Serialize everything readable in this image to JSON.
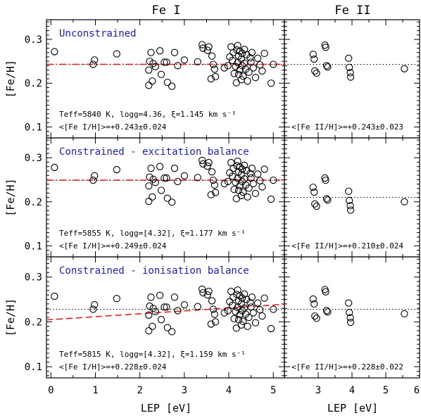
{
  "chart_data": {
    "type": "scatter",
    "column_titles": [
      "Fe I",
      "Fe II"
    ],
    "xlabel": "LEP [eV]",
    "ylabel": "[Fe/H]",
    "fe1_xlim": [
      -0.1,
      5.25
    ],
    "fe2_xlim": [
      2.0,
      6.0
    ],
    "ylim": [
      0.075,
      0.345
    ],
    "fe1_xticks": [
      "0",
      "1",
      "2",
      "3",
      "4",
      "5"
    ],
    "fe2_xticks": [
      "3",
      "4",
      "5",
      "6"
    ],
    "yticks": [
      "0.1",
      "0.2",
      "0.3"
    ],
    "fe1_ref": {
      "x": [
        0.08,
        0.95,
        0.98,
        1.48,
        2.2,
        2.2,
        2.22,
        2.25,
        2.28,
        2.3,
        2.35,
        2.45,
        2.48,
        2.55,
        2.6,
        2.62,
        2.72,
        2.78,
        2.85,
        3.0,
        3.3,
        3.4,
        3.42,
        3.52,
        3.55,
        3.6,
        3.62,
        3.65,
        3.68,
        3.7,
        3.9,
        3.98,
        4.02,
        4.05,
        4.08,
        4.1,
        4.12,
        4.15,
        4.17,
        4.18,
        4.2,
        4.2,
        4.22,
        4.22,
        4.25,
        4.25,
        4.28,
        4.28,
        4.3,
        4.3,
        4.32,
        4.35,
        4.35,
        4.38,
        4.4,
        4.42,
        4.45,
        4.48,
        4.5,
        4.52,
        4.55,
        4.6,
        4.65,
        4.7,
        4.75,
        4.8,
        4.95,
        5.0
      ],
      "y": [
        0.272,
        0.243,
        0.253,
        0.267,
        0.195,
        0.23,
        0.25,
        0.27,
        0.205,
        0.245,
        0.238,
        0.274,
        0.22,
        0.248,
        0.248,
        0.202,
        0.193,
        0.27,
        0.24,
        0.253,
        0.249,
        0.288,
        0.28,
        0.275,
        0.283,
        0.21,
        0.262,
        0.243,
        0.232,
        0.215,
        0.235,
        0.24,
        0.26,
        0.283,
        0.252,
        0.27,
        0.222,
        0.238,
        0.201,
        0.276,
        0.286,
        0.247,
        0.22,
        0.262,
        0.231,
        0.273,
        0.208,
        0.255,
        0.24,
        0.268,
        0.216,
        0.246,
        0.277,
        0.232,
        0.265,
        0.205,
        0.225,
        0.258,
        0.248,
        0.27,
        0.235,
        0.213,
        0.257,
        0.242,
        0.228,
        0.268,
        0.2,
        0.243
      ]
    },
    "fe2_ref": {
      "x": [
        2.85,
        2.88,
        2.9,
        2.95,
        3.2,
        3.22,
        3.25,
        3.28,
        3.9,
        3.92,
        3.95,
        3.96,
        5.55
      ],
      "y": [
        0.266,
        0.255,
        0.228,
        0.223,
        0.287,
        0.282,
        0.24,
        0.237,
        0.257,
        0.236,
        0.224,
        0.214,
        0.233
      ]
    },
    "panels": [
      {
        "label": "Unconstrained",
        "params": "Teff=5840 K, logg=4.36, ξ=1.145 km s⁻¹",
        "fe1_text": "<[Fe I/H]>=+0.243±0.024",
        "fe2_text": "<[Fe II/H]>=+0.243±0.023",
        "fe1_mean": 0.243,
        "fe2_mean": 0.243,
        "fe1_shift": 0.0,
        "fe2_shift": 0.0,
        "fit": [
          0.243,
          0.0
        ]
      },
      {
        "label": "Constrained - excitation balance",
        "params": "Teff=5855 K, logg=[4.32], ξ=1.177 km s⁻¹",
        "fe1_text": "<[Fe I/H]>=+0.249±0.024",
        "fe2_text": "<[Fe II/H]>=+0.210±0.024",
        "fe1_mean": 0.249,
        "fe2_mean": 0.21,
        "fe1_shift": 0.006,
        "fe2_shift": -0.033,
        "fit": [
          0.249,
          0.0
        ]
      },
      {
        "label": "Constrained - ionisation balance",
        "params": "Teff=5815 K, logg=[4.32], ξ=1.159 km s⁻¹",
        "fe1_text": "<[Fe I/H]>=+0.228±0.024",
        "fe2_text": "<[Fe II/H]>=+0.228±0.022",
        "fe1_mean": 0.228,
        "fe2_mean": 0.228,
        "fe1_shift": -0.015,
        "fe2_shift": -0.015,
        "fit": [
          0.205,
          0.0065
        ]
      }
    ],
    "colors": {
      "marker": "#000000",
      "fit_line": "#e8201a",
      "mean_line": "#000000",
      "panel_title": "#1a1ad6"
    }
  }
}
